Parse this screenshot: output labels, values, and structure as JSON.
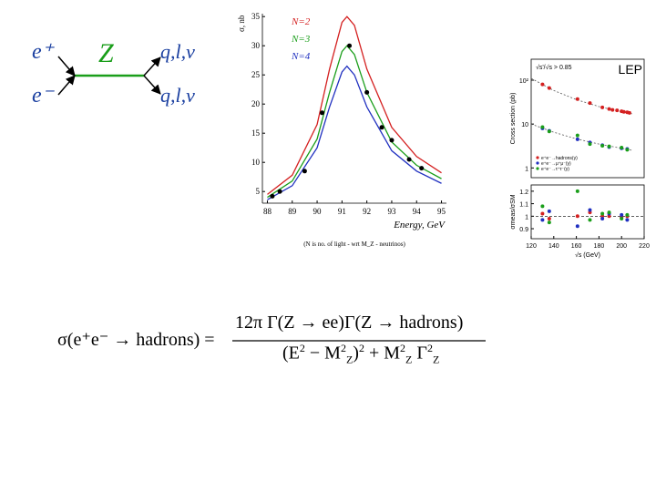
{
  "diagram": {
    "e_plus": "e⁺",
    "e_minus": "e⁻",
    "boson": "Z",
    "final_top": "q,l,ν",
    "final_bottom": "q,l,ν"
  },
  "formula": {
    "lhs": "σ(e⁺e⁻ → hadrons) =",
    "numerator": "12π Γ(Z → ee)Γ(Z → hadrons)",
    "denominator": [
      "(E",
      "2",
      " − M",
      "2",
      "Z",
      ")",
      "2",
      " + M",
      "2",
      "Z",
      " Γ",
      "2",
      "Z"
    ]
  },
  "chart_data": [
    {
      "type": "line",
      "y_label": "σ, nb",
      "x_label": "Energy, GeV",
      "caption": "(N is no. of light - wrt M_Z - neutrinos)",
      "xlim": [
        87.8,
        95.2
      ],
      "xticks": [
        88,
        89,
        90,
        91,
        92,
        93,
        94,
        95
      ],
      "ylim": [
        3,
        35.5
      ],
      "yticks": [
        5,
        10,
        15,
        20,
        25,
        30,
        35
      ],
      "series": [
        {
          "name": "N=2",
          "color": "#d42020",
          "mode": "line",
          "x": [
            88,
            89,
            90,
            90.5,
            91,
            91.2,
            91.5,
            92,
            93,
            94,
            95
          ],
          "values": [
            4.5,
            7.8,
            16.5,
            26,
            34,
            35,
            33.5,
            26,
            16,
            11,
            8.2
          ]
        },
        {
          "name": "N=3",
          "color": "#1a9e1a",
          "mode": "line",
          "x": [
            88,
            89,
            90,
            90.5,
            91,
            91.2,
            91.5,
            92,
            93,
            94,
            95
          ],
          "values": [
            4,
            6.8,
            14,
            22,
            29,
            30,
            28.5,
            22,
            13.5,
            9.5,
            7.2
          ]
        },
        {
          "name": "N=4",
          "color": "#2030c0",
          "mode": "line",
          "x": [
            88,
            89,
            90,
            90.5,
            91,
            91.2,
            91.5,
            92,
            93,
            94,
            95
          ],
          "values": [
            3.6,
            6,
            12.5,
            19.5,
            25.5,
            26.5,
            25,
            19.5,
            12,
            8.5,
            6.4
          ]
        },
        {
          "color": "#000000",
          "mode": "markers",
          "x": [
            88.2,
            88.5,
            89.5,
            90.2,
            91.3,
            92,
            92.6,
            93,
            93.7,
            94.2
          ],
          "values": [
            4.2,
            5,
            8.5,
            18.5,
            30,
            22,
            16,
            13.8,
            10.5,
            9
          ]
        }
      ]
    },
    {
      "type": "scatter",
      "y_label": "Cross section (pb)",
      "log": true,
      "annotations": [
        "√s'/√s > 0.85",
        "LEP"
      ],
      "xlim": [
        120,
        220
      ],
      "ylim": [
        0.6,
        300
      ],
      "yticks": [
        {
          "value": 100,
          "label": "10²"
        },
        10,
        1
      ],
      "series": [
        {
          "color": "#555555",
          "mode": "line",
          "x": [
            120,
            140,
            160,
            180,
            200,
            210
          ],
          "values": [
            110,
            58,
            36,
            25,
            19,
            17
          ]
        },
        {
          "color": "#555555",
          "mode": "line",
          "x": [
            120,
            140,
            160,
            180,
            200,
            210
          ],
          "values": [
            10,
            6.5,
            4.6,
            3.5,
            2.8,
            2.5
          ]
        },
        {
          "name": "e⁺e⁻→hadrons(γ)",
          "color": "#d42020",
          "mode": "markers",
          "x": [
            130,
            136,
            161,
            172,
            183,
            189,
            192,
            196,
            200,
            202,
            205,
            207
          ],
          "values": [
            80,
            66,
            37,
            30,
            24,
            22,
            21,
            20.5,
            19.5,
            19,
            18.5,
            18
          ]
        },
        {
          "name": "e⁺e⁻→μ⁺μ⁻(γ)",
          "color": "#2030c0",
          "mode": "markers",
          "x": [
            130,
            136,
            161,
            172,
            183,
            189,
            200,
            205
          ],
          "values": [
            8,
            7,
            4.5,
            3.8,
            3.3,
            3,
            2.8,
            2.7
          ]
        },
        {
          "name": "e⁺e⁻→τ⁺τ⁻(γ)",
          "color": "#1a9e1a",
          "mode": "markers",
          "x": [
            130,
            136,
            161,
            172,
            183,
            189,
            200,
            205
          ],
          "values": [
            8.5,
            6.8,
            5.5,
            3.5,
            3.2,
            3.1,
            2.9,
            2.6
          ]
        }
      ]
    },
    {
      "type": "scatter",
      "y_label": "σmeas/σSM",
      "x_label": "√s (GeV)",
      "hline": 1,
      "xlim": [
        120,
        220
      ],
      "xticks": [
        120,
        140,
        160,
        180,
        200,
        220
      ],
      "ylim": [
        0.82,
        1.25
      ],
      "yticks": [
        0.9,
        1,
        1.1,
        1.2
      ],
      "series": [
        {
          "color": "#d42020",
          "mode": "markers",
          "x": [
            130,
            136,
            161,
            172,
            183,
            189,
            200,
            205
          ],
          "values": [
            1.02,
            0.98,
            1.0,
            1.03,
            1.0,
            1.0,
            0.99,
            1.0
          ]
        },
        {
          "color": "#2030c0",
          "mode": "markers",
          "x": [
            130,
            136,
            161,
            172,
            183,
            189,
            200,
            205
          ],
          "values": [
            0.97,
            1.04,
            0.92,
            1.05,
            0.98,
            1.02,
            1.01,
            0.97
          ]
        },
        {
          "color": "#1a9e1a",
          "mode": "markers",
          "x": [
            130,
            136,
            161,
            172,
            183,
            189,
            200,
            205
          ],
          "values": [
            1.08,
            0.95,
            1.2,
            0.97,
            1.02,
            1.03,
            0.98,
            1.01
          ]
        }
      ]
    }
  ]
}
